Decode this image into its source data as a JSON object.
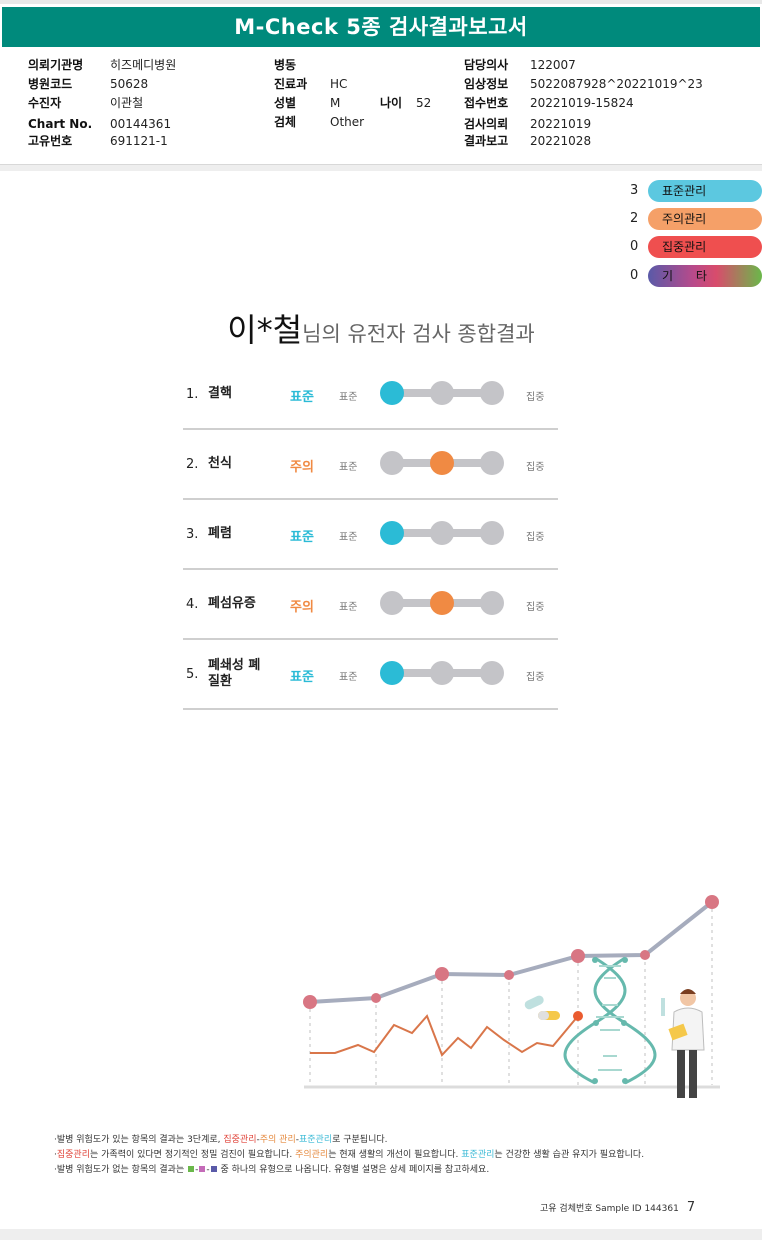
{
  "report": {
    "title": "M-Check 5종 검사결과보고서"
  },
  "patient_info": {
    "col1": [
      {
        "label": "의뢰기관명",
        "value": "히즈메디병원"
      },
      {
        "label": "병원코드",
        "value": "50628"
      },
      {
        "label": "수진자",
        "value": "이관철"
      },
      {
        "label": "Chart No.",
        "value": "00144361"
      },
      {
        "label": "고유번호",
        "value": "691121-1"
      }
    ],
    "col2": [
      {
        "label": "병동",
        "value": ""
      },
      {
        "label": "진료과",
        "value": "HC"
      },
      {
        "label": "성별",
        "value": "M"
      },
      {
        "label": "검체",
        "value": "Other"
      }
    ],
    "age_label": "나이",
    "age_value": "52",
    "col3": [
      {
        "label": "담당의사",
        "value": "122007"
      },
      {
        "label": "임상정보",
        "value": "5022087928^20221019^23"
      },
      {
        "label": "접수번호",
        "value": "20221019-15824"
      },
      {
        "label": "검사의뢰",
        "value": "20221019"
      },
      {
        "label": "결과보고",
        "value": "20221028"
      }
    ]
  },
  "legend": [
    {
      "count": "3",
      "label": "표준관리",
      "color": "#5cc8e0"
    },
    {
      "count": "2",
      "label": "주의관리",
      "color": "#f5a068"
    },
    {
      "count": "0",
      "label": "집중관리",
      "color": "#ef4f4f"
    },
    {
      "count": "0",
      "label": "기      타",
      "color": "multicolor"
    }
  ],
  "headline": {
    "name": "이*철",
    "rest": "님의 유전자 검사 종합결과"
  },
  "scale": {
    "low_label": "표준",
    "high_label": "집중"
  },
  "results": [
    {
      "num": "1.",
      "name": "결핵",
      "status": "표준",
      "level": 0
    },
    {
      "num": "2.",
      "name": "천식",
      "status": "주의",
      "level": 1
    },
    {
      "num": "3.",
      "name": "폐렴",
      "status": "표준",
      "level": 0
    },
    {
      "num": "4.",
      "name": "폐섬유증",
      "status": "주의",
      "level": 1
    },
    {
      "num": "5.",
      "name": "폐쇄성 폐질환",
      "status": "표준",
      "level": 0
    }
  ],
  "colors": {
    "standard": "#2bbbd6",
    "caution": "#f08a43",
    "critical": "#e0443a",
    "inactive": "#c4c4c8",
    "brand": "#008a7c"
  },
  "footnotes": {
    "line1_a": "·발병 위험도가 있는 항목의 결과는 3단계로, ",
    "line1_b": "집중관리",
    "line1_c": "-",
    "line1_d": "주의 관리",
    "line1_e": "-",
    "line1_f": "표준관리",
    "line1_g": "로 구분됩니다.",
    "line2_a": "·",
    "line2_b": "집중관리",
    "line2_c": "는 가족력이 있다면 정기적인 정밀 검진이 필요합니다. ",
    "line2_d": "주의관리",
    "line2_e": "는 현재 생활의 개선이 필요합니다. ",
    "line2_f": "표준관리",
    "line2_g": "는 건강한 생활 습관 유지가 필요합니다.",
    "line3_a": "·발병 위험도가 없는 항목의 결과는 ",
    "line3_b": " 중 하나의 유형으로 나옵니다. 유형별 설명은 상세 페이지를 참고하세요."
  },
  "page_footer": {
    "text": "고유 검체번호 Sample ID 144361",
    "page": "7"
  }
}
